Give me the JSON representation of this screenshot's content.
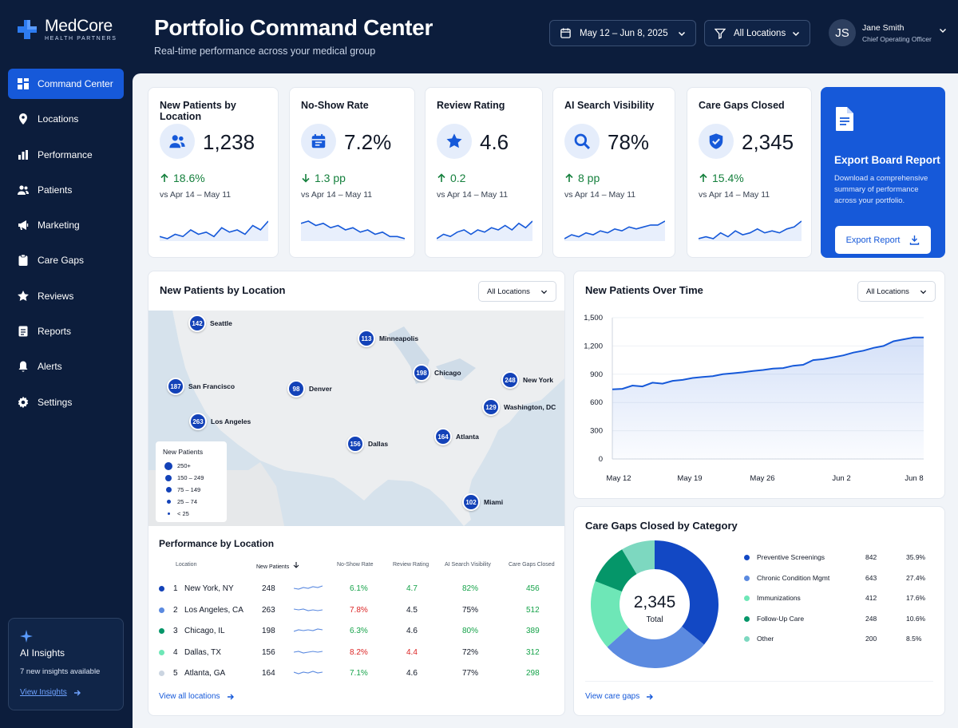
{
  "brand": {
    "name": "MedCore",
    "sub": "HEALTH PARTNERS",
    "color": "#1659d9"
  },
  "nav": [
    {
      "label": "Command Center",
      "icon": "grid-icon",
      "active": true
    },
    {
      "label": "Locations",
      "icon": "location-pin-icon"
    },
    {
      "label": "Performance",
      "icon": "bar-chart-icon"
    },
    {
      "label": "Patients",
      "icon": "users-icon"
    },
    {
      "label": "Marketing",
      "icon": "megaphone-icon"
    },
    {
      "label": "Care Gaps",
      "icon": "clipboard-icon"
    },
    {
      "label": "Reviews",
      "icon": "star-icon"
    },
    {
      "label": "Reports",
      "icon": "document-icon"
    },
    {
      "label": "Alerts",
      "icon": "bell-icon"
    },
    {
      "label": "Settings",
      "icon": "gear-icon"
    }
  ],
  "insights": {
    "title": "AI Insights",
    "text": "7 new insights available",
    "link": "View Insights"
  },
  "header": {
    "title": "Portfolio Command Center",
    "subtitle": "Real-time performance across your medical group",
    "date_range": "May 12 – Jun 8, 2025",
    "location_filter": "All Locations",
    "user": {
      "initials": "JS",
      "name": "Jane Smith",
      "role": "Chief Operating Officer"
    }
  },
  "kpis": [
    {
      "title": "New Patients by Location",
      "value": "1,238",
      "delta": "18.6%",
      "direction": "up",
      "compare": "vs Apr 14 – May 11",
      "icon": "users-icon",
      "trend": [
        6,
        5,
        7,
        6,
        9,
        7,
        8,
        6,
        10,
        8,
        9,
        7,
        11,
        9,
        13
      ]
    },
    {
      "title": "No-Show Rate",
      "value": "7.2%",
      "delta": "1.3 pp",
      "direction": "down",
      "compare": "vs Apr 14 – May 11",
      "icon": "calendar-icon",
      "trend": [
        11,
        12,
        10,
        11,
        9,
        10,
        8,
        9,
        7,
        8,
        6,
        7,
        5,
        5,
        4
      ]
    },
    {
      "title": "Review Rating",
      "value": "4.6",
      "delta": "0.2",
      "direction": "up",
      "compare": "vs Apr 14 – May 11",
      "icon": "star-icon",
      "trend": [
        5,
        7,
        6,
        8,
        9,
        7,
        9,
        8,
        10,
        9,
        11,
        9,
        12,
        10,
        13
      ]
    },
    {
      "title": "AI Search Visibility",
      "value": "78%",
      "delta": "8 pp",
      "direction": "up",
      "compare": "vs Apr 14 – May 11",
      "icon": "search-icon",
      "trend": [
        4,
        6,
        5,
        7,
        6,
        8,
        7,
        9,
        8,
        10,
        9,
        10,
        11,
        11,
        13
      ]
    },
    {
      "title": "Care Gaps Closed",
      "value": "2,345",
      "delta": "15.4%",
      "direction": "up",
      "compare": "vs Apr 14 – May 11",
      "icon": "shield-check-icon",
      "trend": [
        5,
        6,
        5,
        8,
        6,
        9,
        7,
        8,
        10,
        8,
        9,
        8,
        10,
        11,
        14
      ]
    }
  ],
  "export": {
    "title": "Export Board Report",
    "text": "Download a comprehensive summary of performance across your portfolio.",
    "button": "Export Report"
  },
  "map_card": {
    "title": "New Patients by Location",
    "filter": "All Locations",
    "legend_title": "New Patients",
    "legend": [
      "250+",
      "150 – 249",
      "75 – 149",
      "25 – 74",
      "< 25"
    ],
    "pins": [
      {
        "city": "Seattle",
        "value": "142"
      },
      {
        "city": "Minneapolis",
        "value": "113"
      },
      {
        "city": "San Francisco",
        "value": "187"
      },
      {
        "city": "Denver",
        "value": "98"
      },
      {
        "city": "Chicago",
        "value": "198"
      },
      {
        "city": "New York",
        "value": "248"
      },
      {
        "city": "Washington, DC",
        "value": "129"
      },
      {
        "city": "Los Angeles",
        "value": "263"
      },
      {
        "city": "Dallas",
        "value": "156"
      },
      {
        "city": "Atlanta",
        "value": "164"
      },
      {
        "city": "Miami",
        "value": "102"
      }
    ]
  },
  "perf_table": {
    "title": "Performance by Location",
    "headers": [
      "Location",
      "New Patients",
      "No-Show Rate",
      "Review Rating",
      "AI Search Visibility",
      "Care Gaps Closed"
    ],
    "rows": [
      {
        "rank": "1",
        "name": "New York, NY",
        "patients": "248",
        "noshow": "6.1%",
        "rating": "4.7",
        "ai": "82%",
        "gaps": "456",
        "dot": "#1342b8",
        "noshow_color": "#16a34a",
        "rating_color": "#16a34a"
      },
      {
        "rank": "2",
        "name": "Los Angeles, CA",
        "patients": "263",
        "noshow": "7.8%",
        "rating": "4.5",
        "ai": "75%",
        "gaps": "512",
        "dot": "#5b8ae0",
        "noshow_color": "#dc2626",
        "rating_color": "#111827"
      },
      {
        "rank": "3",
        "name": "Chicago, IL",
        "patients": "198",
        "noshow": "6.3%",
        "rating": "4.6",
        "ai": "80%",
        "gaps": "389",
        "dot": "#059669",
        "noshow_color": "#16a34a",
        "rating_color": "#111827"
      },
      {
        "rank": "4",
        "name": "Dallas, TX",
        "patients": "156",
        "noshow": "8.2%",
        "rating": "4.4",
        "ai": "72%",
        "gaps": "312",
        "dot": "#6ee7b7",
        "noshow_color": "#dc2626",
        "rating_color": "#dc2626"
      },
      {
        "rank": "5",
        "name": "Atlanta, GA",
        "patients": "164",
        "noshow": "7.1%",
        "rating": "4.6",
        "ai": "77%",
        "gaps": "298",
        "dot": "#cbd5e1",
        "noshow_color": "#16a34a",
        "rating_color": "#111827"
      }
    ],
    "link": "View all locations"
  },
  "chart_data": [
    {
      "type": "area",
      "title": "New Patients Over Time",
      "filter": "All Locations",
      "x_ticks": [
        "May 12",
        "May 19",
        "May 26",
        "Jun 2",
        "Jun 8"
      ],
      "y_ticks": [
        "0",
        "300",
        "600",
        "900",
        "1,200",
        "1,500"
      ],
      "ylim": [
        0,
        1500
      ],
      "values": [
        740,
        745,
        780,
        770,
        810,
        800,
        830,
        840,
        860,
        870,
        880,
        900,
        910,
        920,
        935,
        945,
        960,
        965,
        990,
        1000,
        1050,
        1060,
        1080,
        1100,
        1130,
        1150,
        1180,
        1200,
        1250,
        1270,
        1290,
        1290
      ],
      "color": "#1659d9"
    },
    {
      "type": "pie",
      "title": "Care Gaps Closed by Category",
      "total": "2,345",
      "total_label": "Total",
      "slices": [
        {
          "label": "Preventive Screenings",
          "value": 842,
          "value_text": "842",
          "pct": "35.9%",
          "color": "#1248c4"
        },
        {
          "label": "Chronic Condition Mgmt",
          "value": 643,
          "value_text": "643",
          "pct": "27.4%",
          "color": "#5b8ae0"
        },
        {
          "label": "Immunizations",
          "value": 412,
          "value_text": "412",
          "pct": "17.6%",
          "color": "#6ee7b7"
        },
        {
          "label": "Follow-Up Care",
          "value": 248,
          "value_text": "248",
          "pct": "10.6%",
          "color": "#059669"
        },
        {
          "label": "Other",
          "value": 200,
          "value_text": "200",
          "pct": "8.5%",
          "color": "#7dd8c0"
        }
      ],
      "link": "View care gaps"
    }
  ]
}
